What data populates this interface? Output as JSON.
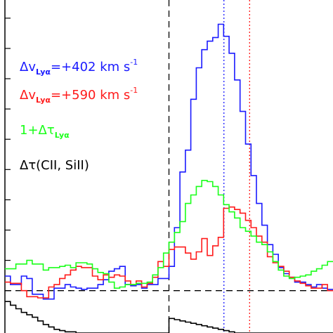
{
  "chart_data": {
    "type": "line",
    "style": "step",
    "title": "",
    "xlabel": "",
    "ylabel": "",
    "xlim": [
      -1200,
      1200
    ],
    "ylim": [
      -0.35,
      2.4
    ],
    "x_bin_width": 40,
    "x_start": -1200,
    "colors": {
      "blue": "#1a1aff",
      "red": "#ff1a1a",
      "green": "#1aff1a",
      "black": "#000000"
    },
    "axes": {
      "left_ticks_y": [
        0,
        0.25,
        0.5,
        0.75,
        1,
        1.25,
        1.5,
        1.75,
        2,
        2.25
      ]
    },
    "reference_lines": [
      {
        "orientation": "horizontal",
        "value": 0,
        "style": "dashed",
        "color": "#000000"
      },
      {
        "orientation": "vertical",
        "value": 0,
        "style": "dashed",
        "color": "#000000"
      },
      {
        "orientation": "vertical",
        "value": 402,
        "style": "dotted",
        "color": "#1a1aff"
      },
      {
        "orientation": "vertical",
        "value": 590,
        "style": "dotted",
        "color": "#ff1a1a"
      }
    ],
    "legend": [
      {
        "main": "Δv",
        "sub": "Lyα",
        "rest": "=+402 km s",
        "sup": "-1",
        "color": "#1a1aff"
      },
      {
        "main": "Δv",
        "sub": "Lyα",
        "rest": "=+590 km s",
        "sup": "-1",
        "color": "#ff1a1a"
      },
      {
        "main": "1+Δτ",
        "sub": "Lyα",
        "rest": "",
        "sup": "",
        "color": "#1aff1a"
      },
      {
        "main": "Δτ(CII, SiII)",
        "sub": "",
        "rest": "",
        "sup": "",
        "color": "#000000"
      }
    ],
    "series": [
      {
        "color": "#1a1aff",
        "values": [
          0.12,
          0.05,
          0.05,
          0.12,
          0.1,
          -0.03,
          -0.03,
          -0.07,
          -0.07,
          0.02,
          0.02,
          0.05,
          0.03,
          0.02,
          0.01,
          0.02,
          0.02,
          0.05,
          0.09,
          0.16,
          0.18,
          0.2,
          0.05,
          0.04,
          0.05,
          0.02,
          0.05,
          0.05,
          0.1,
          0.1,
          0.2,
          0.52,
          0.98,
          1.16,
          1.58,
          1.84,
          1.99,
          2.06,
          2.09,
          2.2,
          2.1,
          1.96,
          1.74,
          1.48,
          1.21,
          0.95,
          0.72,
          0.54,
          0.38,
          0.3,
          0.19,
          0.14,
          0.11,
          0.07,
          0.07,
          0.05,
          0.03,
          0.05,
          0.02,
          0.01
        ]
      },
      {
        "color": "#ff1a1a",
        "values": [
          0.07,
          0.06,
          0.06,
          0.0,
          -0.05,
          -0.05,
          -0.06,
          -0.06,
          0.03,
          0.05,
          0.1,
          0.13,
          0.17,
          0.2,
          0.19,
          0.19,
          0.12,
          0.09,
          0.13,
          0.11,
          0.13,
          0.12,
          0.08,
          0.05,
          0.08,
          0.03,
          0.06,
          0.11,
          0.24,
          0.2,
          0.34,
          0.36,
          0.36,
          0.31,
          0.26,
          0.32,
          0.43,
          0.29,
          0.37,
          0.44,
          0.68,
          0.69,
          0.67,
          0.64,
          0.58,
          0.52,
          0.45,
          0.4,
          0.28,
          0.23,
          0.2,
          0.16,
          0.11,
          0.08,
          0.06,
          0.04,
          0.02,
          0.02,
          0.05,
          0.0
        ]
      },
      {
        "color": "#1aff1a",
        "values": [
          0.18,
          0.18,
          0.22,
          0.22,
          0.25,
          0.22,
          0.22,
          0.17,
          0.19,
          0.19,
          0.2,
          0.21,
          0.19,
          0.23,
          0.23,
          0.22,
          0.18,
          0.15,
          0.14,
          0.07,
          0.02,
          0.03,
          0.05,
          0.05,
          0.06,
          0.06,
          0.07,
          0.13,
          0.19,
          0.31,
          0.4,
          0.48,
          0.57,
          0.72,
          0.79,
          0.86,
          0.91,
          0.9,
          0.86,
          0.79,
          0.71,
          0.65,
          0.6,
          0.52,
          0.49,
          0.45,
          0.4,
          0.38,
          0.32,
          0.24,
          0.17,
          0.12,
          0.1,
          0.11,
          0.12,
          0.13,
          0.16,
          0.18,
          0.21,
          0.24
        ]
      },
      {
        "color": "#000000",
        "values": [
          -0.09,
          -0.12,
          -0.15,
          -0.18,
          -0.2,
          -0.22,
          -0.25,
          -0.28,
          -0.3,
          -0.32,
          -0.33,
          -0.34,
          -0.34,
          -0.35,
          -0.35,
          -0.35,
          -0.35,
          -0.35,
          -0.35,
          -0.35,
          -0.35,
          -0.35,
          -0.35,
          -0.35,
          -0.35,
          -0.35,
          -0.35,
          -0.35,
          -0.35,
          -0.35,
          -0.23,
          -0.24,
          -0.25,
          -0.26,
          -0.27,
          -0.28,
          -0.29,
          -0.3,
          -0.31,
          -0.32,
          -0.33,
          -0.34,
          -0.35,
          -0.35,
          -0.35,
          -0.35,
          -0.35,
          -0.35,
          -0.35,
          -0.35,
          -0.35,
          -0.35,
          -0.35,
          -0.35,
          -0.35,
          -0.35,
          -0.35,
          -0.35,
          -0.35,
          -0.35
        ]
      }
    ]
  }
}
